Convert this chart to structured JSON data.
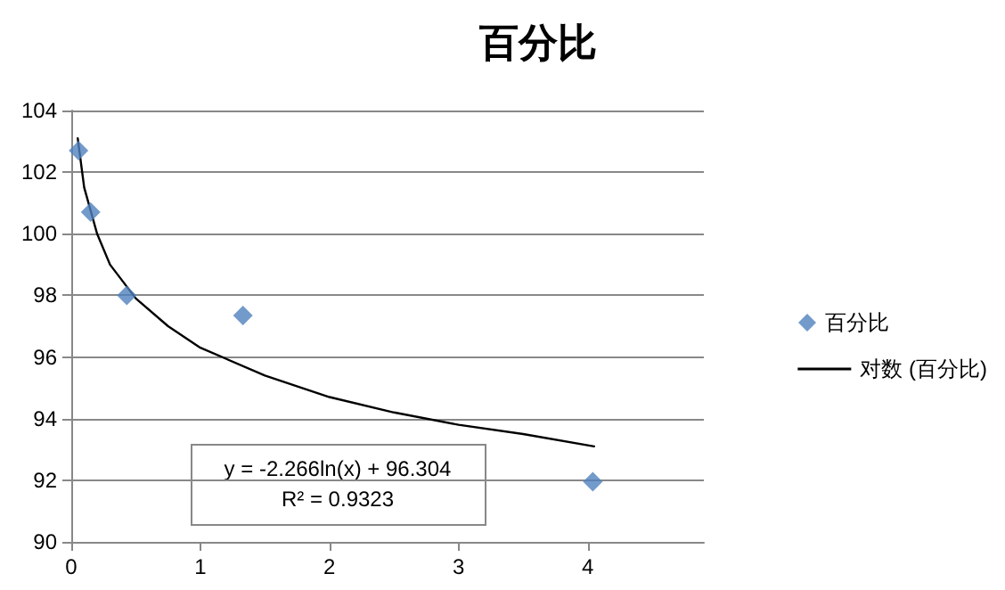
{
  "chart_data": {
    "type": "scatter",
    "title": "百分比",
    "series": [
      {
        "name": "百分比",
        "color": "#4f81bd",
        "marker": "diamond",
        "x": [
          0.056,
          0.15,
          0.43,
          1.33,
          4.04
        ],
        "values": [
          102.7,
          100.7,
          98.0,
          97.35,
          91.95
        ]
      },
      {
        "name": "对数 (百分比)",
        "type": "line",
        "color": "#000000",
        "marker": "none",
        "line_style": "solid",
        "x": [
          0.05,
          0.1,
          0.2,
          0.3,
          0.5,
          0.75,
          1,
          1.5,
          2,
          2.5,
          3,
          3.5,
          4.05
        ],
        "values": [
          103.1,
          101.5,
          100.0,
          99.0,
          97.9,
          97.0,
          96.3,
          95.4,
          94.7,
          94.2,
          93.8,
          93.5,
          93.1
        ]
      }
    ],
    "xlim": [
      0,
      4.9
    ],
    "xticks": [
      0,
      1,
      2,
      3,
      4
    ],
    "ylim": [
      90,
      104
    ],
    "yticks": [
      90,
      92,
      94,
      96,
      98,
      100,
      102,
      104
    ],
    "grid": "y",
    "legend": "right",
    "annotations": [
      "y = -2.266ln(x) + 96.304",
      "R² = 0.9323"
    ]
  }
}
